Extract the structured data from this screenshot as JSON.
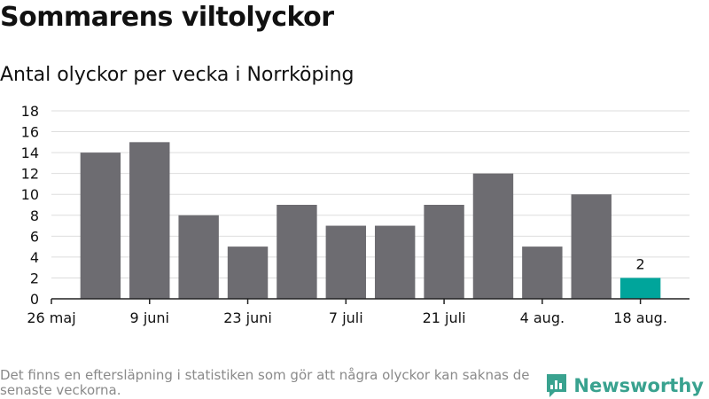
{
  "header": {
    "title": "Sommarens viltolyckor",
    "subtitle": "Antal olyckor per vecka i Norrköping"
  },
  "footer": {
    "note": "Det finns en eftersläpning i statistiken som gör att några olyckor kan saknas de senaste veckorna.",
    "brand": "Newsworthy"
  },
  "colors": {
    "bar": "#6d6c71",
    "highlight": "#00a59b",
    "brand": "#39a28f",
    "grid": "#dddddd",
    "axis": "#222222"
  },
  "chart_data": {
    "type": "bar",
    "values": [
      14,
      15,
      8,
      5,
      9,
      7,
      7,
      9,
      12,
      5,
      10,
      2
    ],
    "highlight_index": 11,
    "highlight_label": "2",
    "x_tick_labels": [
      "26 maj",
      "9 juni",
      "23 juni",
      "7 juli",
      "21 juli",
      "4 aug.",
      "18 aug."
    ],
    "y_ticks": [
      0,
      2,
      4,
      6,
      8,
      10,
      12,
      14,
      16,
      18
    ],
    "ylim": [
      0,
      18
    ],
    "grid": true,
    "legend": "none"
  }
}
